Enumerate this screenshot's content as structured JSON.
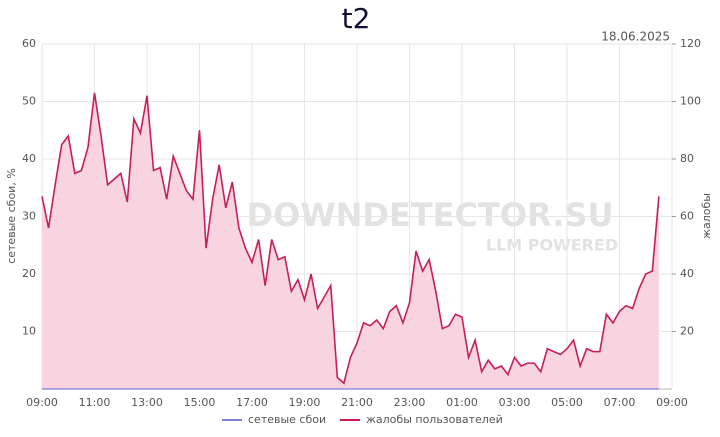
{
  "chart_data": {
    "type": "line",
    "title": "t2",
    "subtitle": "18.06.2025",
    "watermark": "DOWNDETECTOR.SU",
    "watermark_sub": "LLM POWERED",
    "y_label": "сетевые сбои, %",
    "y2_label": "жалобы",
    "x": [
      "09:00",
      "09:15",
      "09:30",
      "09:45",
      "10:00",
      "10:15",
      "10:30",
      "10:45",
      "11:00",
      "11:15",
      "11:30",
      "11:45",
      "12:00",
      "12:15",
      "12:30",
      "12:45",
      "13:00",
      "13:15",
      "13:30",
      "13:45",
      "14:00",
      "14:15",
      "14:30",
      "14:45",
      "15:00",
      "15:15",
      "15:30",
      "15:45",
      "16:00",
      "16:15",
      "16:30",
      "16:45",
      "17:00",
      "17:15",
      "17:30",
      "17:45",
      "18:00",
      "18:15",
      "18:30",
      "18:45",
      "19:00",
      "19:15",
      "19:30",
      "19:45",
      "20:00",
      "20:15",
      "20:30",
      "20:45",
      "21:00",
      "21:15",
      "21:30",
      "21:45",
      "22:00",
      "22:15",
      "22:30",
      "22:45",
      "23:00",
      "23:15",
      "23:30",
      "23:45",
      "00:00",
      "00:15",
      "00:30",
      "00:45",
      "01:00",
      "01:15",
      "01:30",
      "01:45",
      "02:00",
      "02:15",
      "02:30",
      "02:45",
      "03:00",
      "03:15",
      "03:30",
      "03:45",
      "04:00",
      "04:15",
      "04:30",
      "04:45",
      "05:00",
      "05:15",
      "05:30",
      "05:45",
      "06:00",
      "06:15",
      "06:30",
      "06:45",
      "07:00",
      "07:15",
      "07:30",
      "07:45",
      "08:00",
      "08:15",
      "08:30"
    ],
    "series": [
      {
        "name": "сетевые сбои",
        "color": "#7b80d8",
        "values": [
          0,
          0,
          0,
          0,
          0,
          0,
          0,
          0,
          0,
          0,
          0,
          0,
          0,
          0,
          0,
          0,
          0,
          0,
          0,
          0,
          0,
          0,
          0,
          0,
          0,
          0,
          0,
          0,
          0,
          0,
          0,
          0,
          0,
          0,
          0,
          0,
          0,
          0,
          0,
          0,
          0,
          0,
          0,
          0,
          0,
          0,
          0,
          0,
          0,
          0,
          0,
          0,
          0,
          0,
          0,
          0,
          0,
          0,
          0,
          0,
          0,
          0,
          0,
          0,
          0,
          0,
          0,
          0,
          0,
          0,
          0,
          0,
          0,
          0,
          0,
          0,
          0,
          0,
          0,
          0,
          0,
          0,
          0,
          0,
          0,
          0,
          0,
          0,
          0,
          0,
          0,
          0,
          0,
          0,
          0
        ]
      },
      {
        "name": "жалобы пользователей",
        "color": "#c81d5a",
        "fill": "#f8d3e0",
        "axis": "y2",
        "values": [
          67,
          56,
          71,
          85,
          88,
          75,
          76,
          84,
          103,
          88,
          71,
          73,
          75,
          65,
          94,
          89,
          102,
          76,
          77,
          66,
          81,
          75,
          69,
          66,
          90,
          49,
          66,
          78,
          63,
          72,
          56,
          49,
          44,
          52,
          36,
          52,
          45,
          46,
          34,
          38,
          31,
          40,
          28,
          32,
          36,
          4,
          2,
          11,
          16,
          23,
          22,
          24,
          21,
          27,
          29,
          23,
          30,
          48,
          41,
          45,
          34,
          21,
          22,
          26,
          25,
          11,
          17,
          6,
          10,
          7,
          8,
          5,
          11,
          8,
          9,
          9,
          6,
          14,
          13,
          12,
          14,
          17,
          8,
          14,
          13,
          13,
          26,
          23,
          27,
          29,
          28,
          35,
          40,
          41,
          67
        ]
      }
    ],
    "xlim": [
      "09:00",
      "09:00"
    ],
    "xticks": [
      "09:00",
      "11:00",
      "13:00",
      "15:00",
      "17:00",
      "19:00",
      "21:00",
      "23:00",
      "01:00",
      "03:00",
      "05:00",
      "07:00",
      "09:00"
    ],
    "ylim": [
      0,
      60
    ],
    "yticks": [
      10,
      20,
      30,
      40,
      50,
      60
    ],
    "y2lim": [
      0,
      120
    ],
    "y2ticks": [
      20,
      40,
      60,
      80,
      100,
      120
    ],
    "grid": true
  }
}
